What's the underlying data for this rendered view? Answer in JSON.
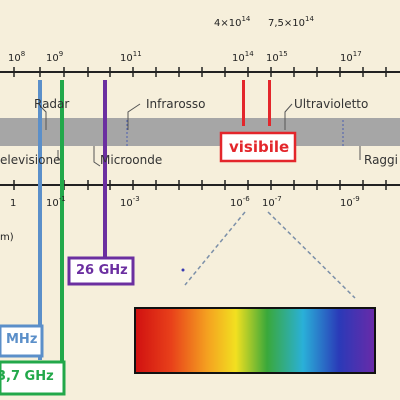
{
  "frequency_scale": {
    "ticks": [
      {
        "base": "10",
        "exp": "8"
      },
      {
        "base": "10",
        "exp": "9"
      },
      {
        "base": "10",
        "exp": "11"
      },
      {
        "base": "10",
        "exp": "14"
      },
      {
        "base": "10",
        "exp": "15"
      },
      {
        "base": "10",
        "exp": "17"
      }
    ],
    "visible_bounds": [
      {
        "base": "4×10",
        "exp": "14"
      },
      {
        "base": "7,5×10",
        "exp": "14"
      }
    ]
  },
  "wavelength_scale": {
    "ticks": [
      {
        "base": "1",
        "exp": ""
      },
      {
        "base": "10",
        "exp": "-1"
      },
      {
        "base": "10",
        "exp": "-3"
      },
      {
        "base": "10",
        "exp": "-6"
      },
      {
        "base": "10",
        "exp": "-7"
      },
      {
        "base": "10",
        "exp": "-9"
      }
    ],
    "unit_fragment": "m)"
  },
  "bands": {
    "radar": "Radar",
    "infrared": "Infrarosso",
    "ultraviolet": "Ultravioletto",
    "television": "elevisione",
    "microwaves": "Microonde",
    "visible": "visibile",
    "rays": "Raggi"
  },
  "markers": {
    "mhz": "MHz",
    "ghz_26": "26 GHz",
    "ghz_37": "3,7 GHz"
  },
  "colors": {
    "background": "#f6efdb",
    "band_bar": "#a6a6a6",
    "blue_marker": "#5b8fc9",
    "green_marker": "#22a84a",
    "purple_marker": "#6b2fa0",
    "visible_red": "#e3262b"
  }
}
